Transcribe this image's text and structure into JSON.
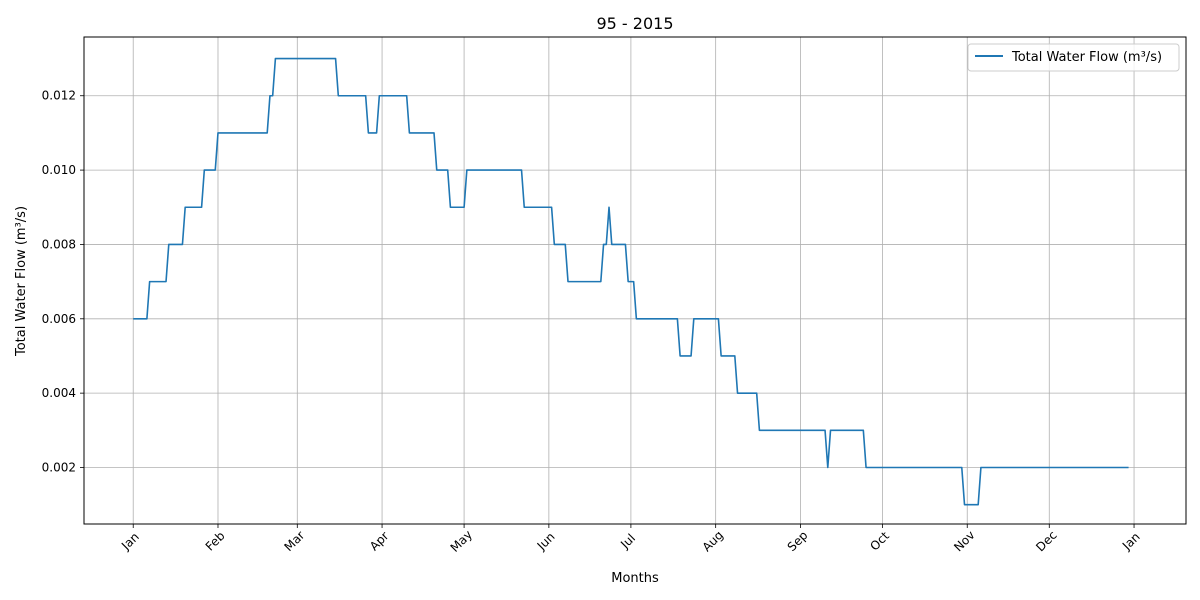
{
  "chart_data": {
    "type": "line",
    "title": "95 - 2015",
    "xlabel": "Months",
    "ylabel": "Total Water Flow (m³/s)",
    "x_ticks": [
      "Jan",
      "Feb",
      "Mar",
      "Apr",
      "May",
      "Jun",
      "Jul",
      "Aug",
      "Sep",
      "Oct",
      "Nov",
      "Dec",
      "Jan"
    ],
    "y_ticks": [
      "0.002",
      "0.004",
      "0.006",
      "0.008",
      "0.010",
      "0.012"
    ],
    "xlim": [
      "2015-12-14",
      "2017-01-20"
    ],
    "ylim": [
      0.00048,
      0.01358
    ],
    "grid": true,
    "legend_position": "top-right",
    "series": [
      {
        "name": "Total Water Flow (m³/s)",
        "color": "#1f77b4",
        "points": [
          [
            "2016-01-01",
            0.006
          ],
          [
            "2016-01-06",
            0.006
          ],
          [
            "2016-01-07",
            0.007
          ],
          [
            "2016-01-13",
            0.007
          ],
          [
            "2016-01-14",
            0.008
          ],
          [
            "2016-01-19",
            0.008
          ],
          [
            "2016-01-20",
            0.009
          ],
          [
            "2016-01-26",
            0.009
          ],
          [
            "2016-01-27",
            0.01
          ],
          [
            "2016-01-31",
            0.01
          ],
          [
            "2016-02-01",
            0.011
          ],
          [
            "2016-02-19",
            0.011
          ],
          [
            "2016-02-20",
            0.012
          ],
          [
            "2016-02-21",
            0.012
          ],
          [
            "2016-02-22",
            0.013
          ],
          [
            "2016-03-15",
            0.013
          ],
          [
            "2016-03-16",
            0.012
          ],
          [
            "2016-03-26",
            0.012
          ],
          [
            "2016-03-27",
            0.011
          ],
          [
            "2016-03-30",
            0.011
          ],
          [
            "2016-03-31",
            0.012
          ],
          [
            "2016-04-10",
            0.012
          ],
          [
            "2016-04-11",
            0.011
          ],
          [
            "2016-04-20",
            0.011
          ],
          [
            "2016-04-21",
            0.01
          ],
          [
            "2016-04-25",
            0.01
          ],
          [
            "2016-04-26",
            0.009
          ],
          [
            "2016-05-01",
            0.009
          ],
          [
            "2016-05-02",
            0.01
          ],
          [
            "2016-05-22",
            0.01
          ],
          [
            "2016-05-23",
            0.009
          ],
          [
            "2016-06-02",
            0.009
          ],
          [
            "2016-06-03",
            0.008
          ],
          [
            "2016-06-07",
            0.008
          ],
          [
            "2016-06-08",
            0.007
          ],
          [
            "2016-06-20",
            0.007
          ],
          [
            "2016-06-21",
            0.008
          ],
          [
            "2016-06-22",
            0.008
          ],
          [
            "2016-06-23",
            0.009
          ],
          [
            "2016-06-24",
            0.008
          ],
          [
            "2016-06-29",
            0.008
          ],
          [
            "2016-06-30",
            0.007
          ],
          [
            "2016-07-02",
            0.007
          ],
          [
            "2016-07-03",
            0.006
          ],
          [
            "2016-07-18",
            0.006
          ],
          [
            "2016-07-19",
            0.005
          ],
          [
            "2016-07-23",
            0.005
          ],
          [
            "2016-07-24",
            0.006
          ],
          [
            "2016-08-02",
            0.006
          ],
          [
            "2016-08-03",
            0.005
          ],
          [
            "2016-08-08",
            0.005
          ],
          [
            "2016-08-09",
            0.004
          ],
          [
            "2016-08-16",
            0.004
          ],
          [
            "2016-08-17",
            0.003
          ],
          [
            "2016-09-10",
            0.003
          ],
          [
            "2016-09-11",
            0.002
          ],
          [
            "2016-09-12",
            0.003
          ],
          [
            "2016-09-24",
            0.003
          ],
          [
            "2016-09-25",
            0.002
          ],
          [
            "2016-10-30",
            0.002
          ],
          [
            "2016-10-31",
            0.001
          ],
          [
            "2016-11-05",
            0.001
          ],
          [
            "2016-11-06",
            0.002
          ],
          [
            "2016-12-30",
            0.002
          ]
        ]
      }
    ]
  }
}
